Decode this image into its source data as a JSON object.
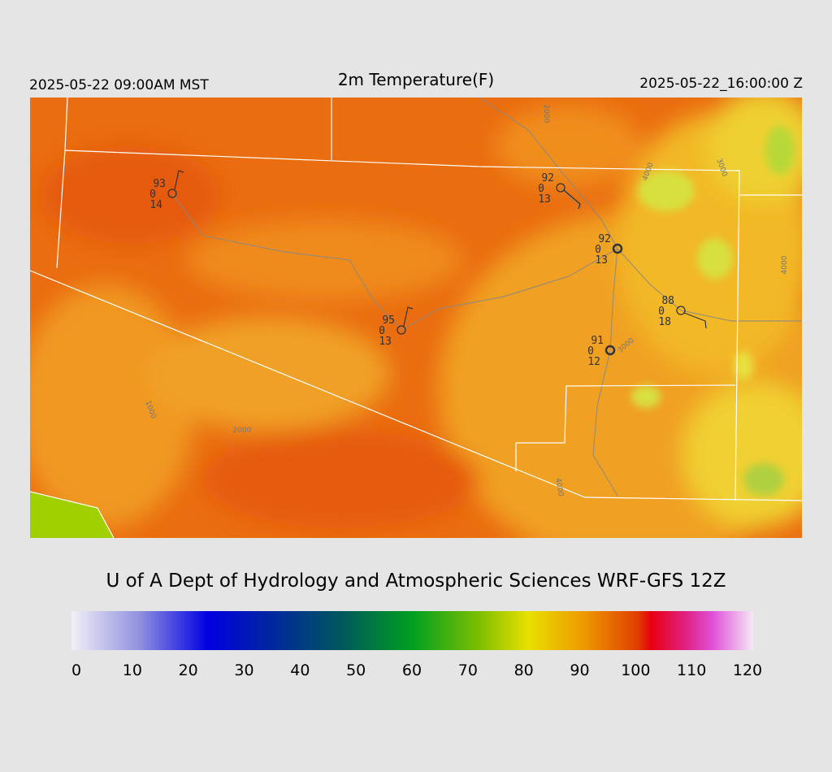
{
  "header": {
    "left": "2025-05-22 09:00AM MST",
    "title": "2m Temperature(F)",
    "right": "2025-05-22_16:00:00 Z"
  },
  "stations": [
    {
      "temp": 93,
      "pressure": 0,
      "dewpoint": 14
    },
    {
      "temp": 92,
      "pressure": 0,
      "dewpoint": 13
    },
    {
      "temp": 92,
      "pressure": 0,
      "dewpoint": 13
    },
    {
      "temp": 95,
      "pressure": 0,
      "dewpoint": 13
    },
    {
      "temp": 88,
      "pressure": 0,
      "dewpoint": 18
    },
    {
      "temp": 91,
      "pressure": 0,
      "dewpoint": 12
    }
  ],
  "contour_labels": [
    "2000",
    "1000",
    "3000",
    "4000",
    "3000",
    "4000",
    "2000",
    "4000"
  ],
  "credit": "U of A Dept of Hydrology and Atmospheric Sciences WRF-GFS 12Z",
  "colorbar": {
    "ticks": [
      0,
      10,
      20,
      30,
      40,
      50,
      60,
      70,
      80,
      90,
      100,
      110,
      120
    ]
  }
}
